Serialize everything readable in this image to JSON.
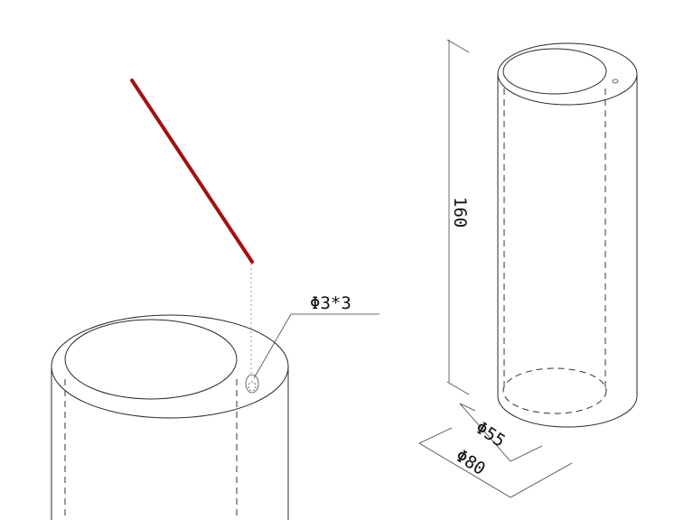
{
  "hole_callout": "Φ3*3",
  "dimensions": {
    "height": "160",
    "inner_diameter": "Φ55",
    "outer_diameter": "Φ80"
  },
  "colors": {
    "line": "#2a2a2a",
    "rod": "#a30f12",
    "background": "#ffffff"
  }
}
